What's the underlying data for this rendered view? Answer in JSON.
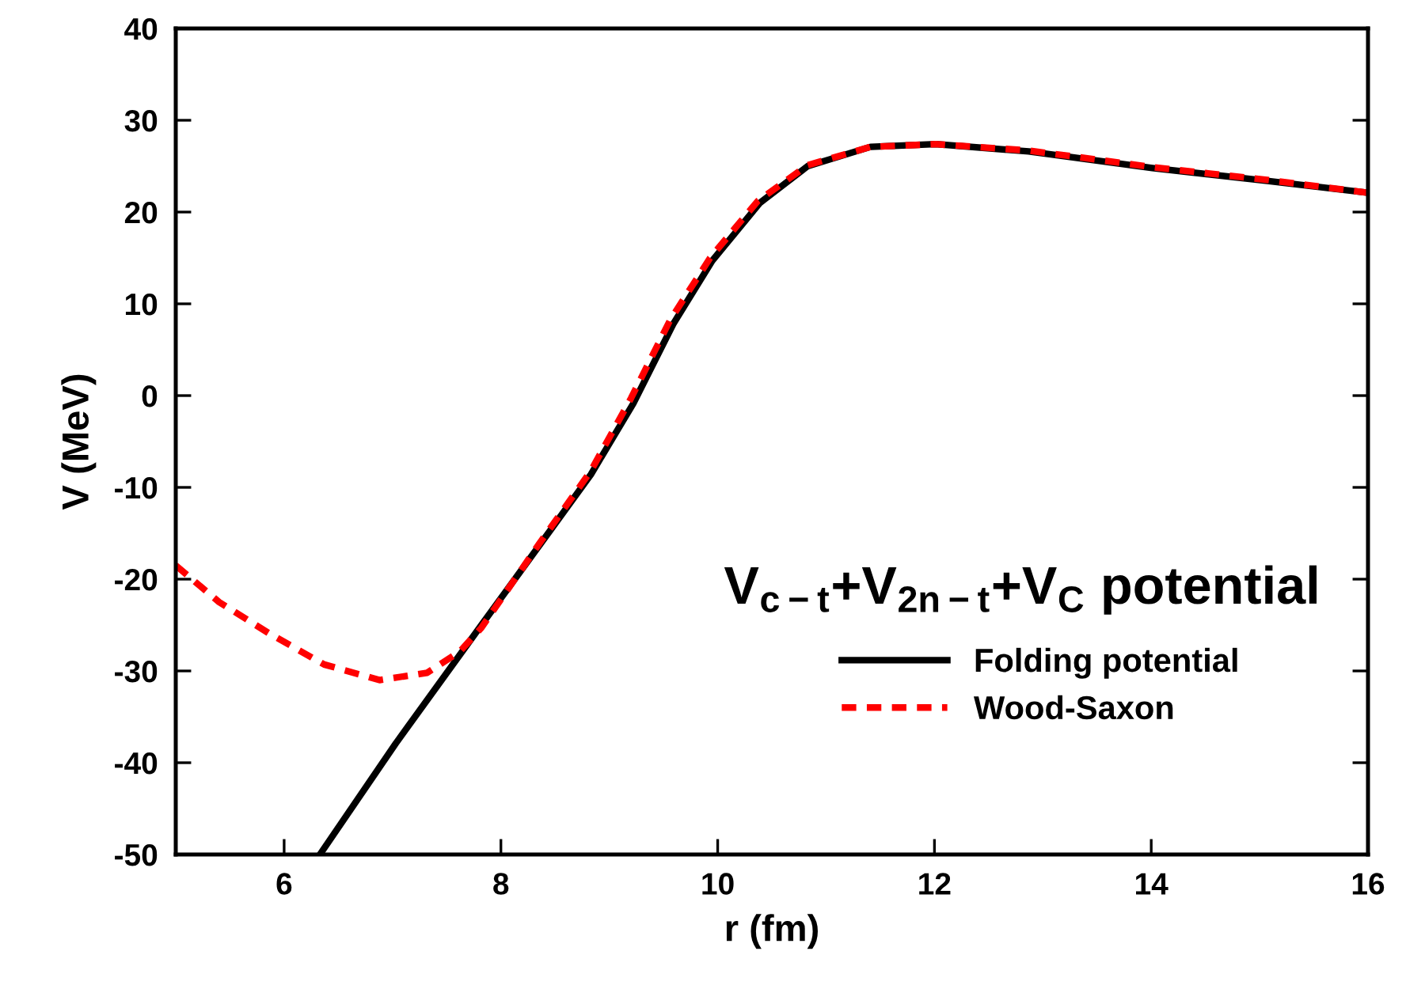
{
  "chart_data": {
    "type": "line",
    "xlabel": "r (fm)",
    "ylabel": "V (MeV)",
    "annotations": [
      "V$_{c−t}$+V$_{2n−t}$+V$_{C}$ potential"
    ],
    "xlim": [
      5,
      16
    ],
    "xticks": [
      6,
      8,
      10,
      12,
      14,
      16
    ],
    "ylim": [
      -50,
      40
    ],
    "yticks": [
      -50,
      -40,
      -30,
      -20,
      -10,
      0,
      10,
      20,
      30,
      40
    ],
    "grid": false,
    "legend": "lower right",
    "series": [
      {
        "name": "Folding potential",
        "color": "#000000",
        "line_style": "solid",
        "x": [
          6.33,
          7.03,
          7.82,
          8.35,
          8.83,
          9.22,
          9.59,
          9.95,
          10.39,
          10.83,
          11.41,
          12.01,
          12.87,
          14.01,
          15.07,
          16
        ],
        "values": [
          -50,
          -37.9,
          -25,
          -16.4,
          -8.6,
          -0.9,
          7.8,
          14.7,
          21,
          25,
          27.1,
          27.4,
          26.6,
          24.8,
          23.4,
          22.1
        ]
      },
      {
        "name": "Wood-Saxon",
        "color": "#ff0000",
        "line_style": "dashed",
        "x": [
          5,
          5.4,
          5.86,
          6.37,
          6.88,
          7.32,
          7.62,
          7.82,
          8.35,
          8.83,
          9.2,
          9.56,
          9.93,
          10.37,
          10.83,
          11.41,
          12.01,
          12.87,
          14.01,
          15.07,
          16
        ],
        "values": [
          -18.5,
          -22.5,
          -25.9,
          -29.3,
          -31,
          -30.2,
          -27.9,
          -25.3,
          -16.2,
          -8.2,
          -0.3,
          8.2,
          15,
          21.2,
          25.1,
          27.1,
          27.4,
          26.7,
          24.9,
          23.5,
          22.1
        ]
      }
    ]
  }
}
